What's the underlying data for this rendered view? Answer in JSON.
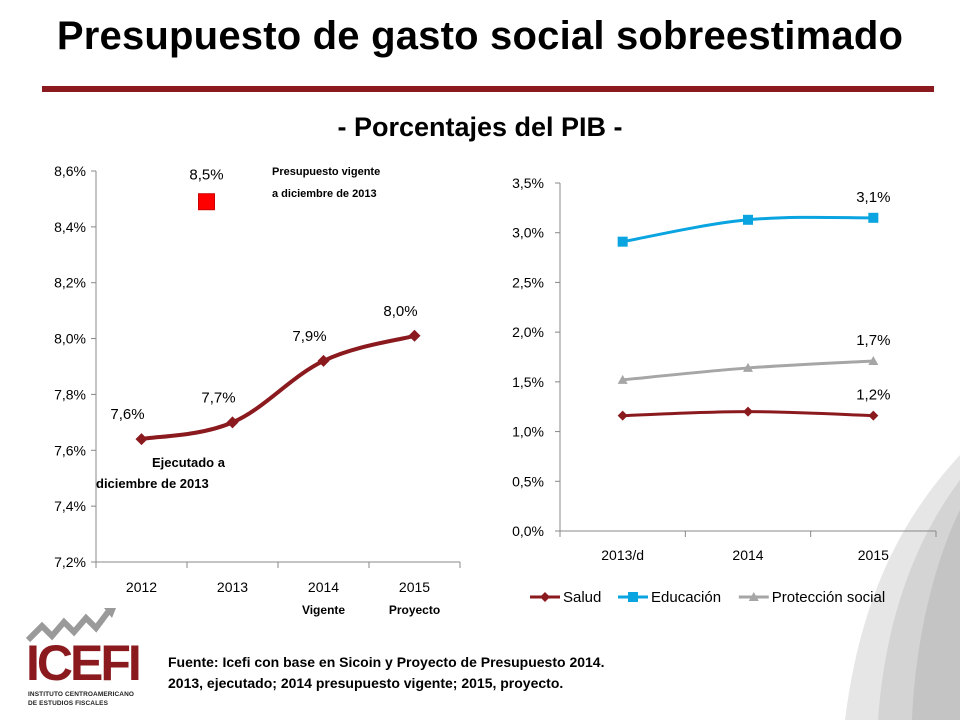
{
  "page": {
    "title": "Presupuesto de gasto social sobreestimado",
    "subtitle": "- Porcentajes del PIB -",
    "source_line1": "Fuente: Icefi con base en Sicoin y Proyecto de Presupuesto 2014.",
    "source_line2": "2013, ejecutado; 2014 presupuesto  vigente; 2015, proyecto.",
    "logo_text": "ICEFI",
    "logo_sub1": "INSTITUTO CENTROAMERICANO",
    "logo_sub2": "DE ESTUDIOS FISCALES",
    "colors": {
      "accent": "#8B1A1F",
      "education": "#0AA4E0",
      "social": "#A6A6A6",
      "marker_red": "#FF0000"
    }
  },
  "chart_data": [
    {
      "type": "line",
      "categories": [
        "2012",
        "2013",
        "2014",
        "2015"
      ],
      "category_sublabels": [
        "",
        "",
        "Vigente",
        "Proyecto"
      ],
      "series": [
        {
          "values": [
            7.64,
            7.7,
            7.92,
            8.01
          ],
          "labels": [
            "7,6%",
            "7,7%",
            "7,9%",
            "8,0%"
          ],
          "color": "#8B1A1F",
          "marker": "diamond"
        }
      ],
      "highlight_point": {
        "category": "2013",
        "value": 8.49,
        "label": "8,5%",
        "color": "#FF0000",
        "marker": "square"
      },
      "annotations": [
        "Presupuesto vigente",
        "a diciembre de 2013",
        "Ejecutado a",
        "diciembre de 2013"
      ],
      "ylim": [
        7.2,
        8.6
      ],
      "yticks": [
        "7,2%",
        "7,4%",
        "7,6%",
        "7,8%",
        "8,0%",
        "8,2%",
        "8,4%",
        "8,6%"
      ],
      "grid": false
    },
    {
      "type": "line",
      "categories": [
        "2013/d",
        "2014",
        "2015"
      ],
      "series": [
        {
          "name": "Salud",
          "values": [
            1.16,
            1.2,
            1.16
          ],
          "end_label": "1,2%",
          "color": "#8B1A1F",
          "marker": "diamond"
        },
        {
          "name": "Educación",
          "values": [
            2.91,
            3.13,
            3.15
          ],
          "end_label": "3,1%",
          "color": "#0AA4E0",
          "marker": "square"
        },
        {
          "name": "Protección social",
          "values": [
            1.52,
            1.64,
            1.71
          ],
          "end_label": "1,7%",
          "color": "#A6A6A6",
          "marker": "triangle"
        }
      ],
      "ylim": [
        0,
        3.5
      ],
      "yticks": [
        "0,0%",
        "0,5%",
        "1,0%",
        "1,5%",
        "2,0%",
        "2,5%",
        "3,0%",
        "3,5%"
      ],
      "legend": "bottom",
      "grid": false
    }
  ]
}
